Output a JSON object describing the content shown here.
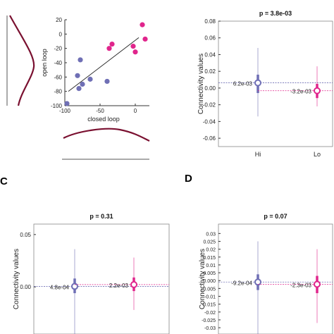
{
  "colors": {
    "hi": "#6f6fb5",
    "lo": "#e0258c",
    "marginal": "#7a1030",
    "axis": "#333333",
    "fit": "#222222"
  },
  "panel_letters": [
    "C",
    "D"
  ],
  "chart_data": [
    {
      "id": "A",
      "type": "scatter",
      "xlabel": "closed loop",
      "ylabel": "open loop",
      "xlim": [
        -100,
        20
      ],
      "ylim": [
        -100,
        20
      ],
      "xticks": [
        "-100",
        "-50",
        "0"
      ],
      "yticks": [
        "20",
        "0",
        "-20",
        "-40",
        "-60",
        "-80",
        "-100"
      ],
      "series": [
        {
          "color": "hi",
          "points": [
            [
              -97,
              -97
            ],
            [
              -80,
              -76
            ],
            [
              -78,
              -36
            ],
            [
              -75,
              -70
            ],
            [
              -82,
              -58
            ],
            [
              -64,
              -63
            ],
            [
              -40,
              -66
            ]
          ]
        },
        {
          "color": "lo",
          "points": [
            [
              -37,
              -20
            ],
            [
              -33,
              -14
            ],
            [
              -3,
              -17
            ],
            [
              0,
              -25
            ],
            [
              10,
              13
            ],
            [
              14,
              -7
            ]
          ]
        }
      ],
      "fit_line": [
        [
          -95,
          -80
        ],
        [
          5,
          -5
        ]
      ],
      "marginals": "x-bottom, y-left"
    },
    {
      "id": "B",
      "type": "scatter",
      "title": "p = 3.8e-03",
      "ylabel": "Connectivity values",
      "categories": [
        "Hi",
        "Lo"
      ],
      "ylim": [
        -0.07,
        0.08
      ],
      "yticks": [
        "0.08",
        "0.06",
        "0.04",
        "0.02",
        "0.00",
        "-0.02",
        "-0.04",
        "-0.06"
      ],
      "groups": [
        {
          "label": "6.2e-03",
          "median": 0.0062,
          "iqr": [
            -0.006,
            0.016
          ],
          "range": [
            -0.034,
            0.048
          ],
          "color": "hi"
        },
        {
          "label": "-3.2e-03",
          "median": -0.0032,
          "iqr": [
            -0.012,
            0.005
          ],
          "range": [
            -0.022,
            0.026
          ],
          "color": "lo"
        }
      ]
    },
    {
      "id": "C",
      "type": "scatter",
      "title": "p = 0.31",
      "ylabel": "Connectivity values",
      "ylim": [
        -0.045,
        0.06
      ],
      "yticks": [
        "0.05",
        "0.00"
      ],
      "groups": [
        {
          "label": "4.8e-04",
          "median": 0.00048,
          "iqr": [
            -0.006,
            0.008
          ],
          "range": [
            -0.05,
            0.036
          ],
          "color": "hi"
        },
        {
          "label": "2.2e-03",
          "median": 0.0022,
          "iqr": [
            -0.004,
            0.009
          ],
          "range": [
            -0.022,
            0.028
          ],
          "color": "lo"
        }
      ]
    },
    {
      "id": "D",
      "type": "scatter",
      "title": "p = 0.07",
      "ylabel": "Connectivity values",
      "ylim": [
        -0.034,
        0.036
      ],
      "yticks": [
        "0.03",
        "0.025",
        "0.02",
        "0.015",
        "0.01",
        "0.005",
        "0.000",
        "-0.005",
        "-0.01",
        "-0.015",
        "-0.02",
        "-0.025",
        "-0.03"
      ],
      "groups": [
        {
          "label": "-9.2e-04",
          "median": -0.00092,
          "iqr": [
            -0.006,
            0.004
          ],
          "range": [
            -0.034,
            0.025
          ],
          "color": "hi"
        },
        {
          "label": "-2.3e-03",
          "median": -0.0023,
          "iqr": [
            -0.008,
            0.003
          ],
          "range": [
            -0.027,
            0.02
          ],
          "color": "lo"
        }
      ]
    }
  ]
}
